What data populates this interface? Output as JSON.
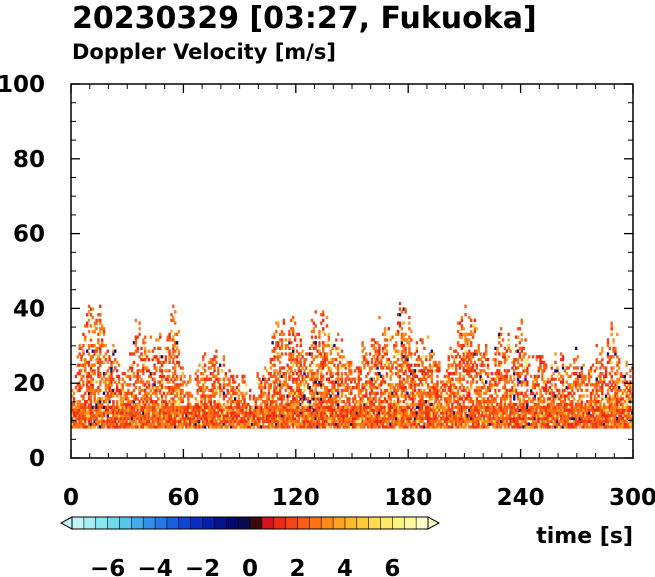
{
  "chart_data": {
    "type": "heatmap",
    "title": "20230329 [03:27, Fukuoka]",
    "subtitle": "Doppler Velocity [m/s]",
    "xlabel": "time [s]",
    "ylabel": "",
    "xlim": [
      0,
      300
    ],
    "ylim": [
      0,
      100
    ],
    "x_ticks": [
      "0",
      "60",
      "120",
      "180",
      "240",
      "300"
    ],
    "y_ticks": [
      "0",
      "20",
      "40",
      "60",
      "80",
      "100"
    ],
    "grid": false,
    "colorbar": {
      "label_ticks": [
        "−6",
        "−4",
        "−2",
        "0",
        "2",
        "4",
        "6"
      ],
      "range": [
        -7.5,
        7.5
      ],
      "extend": "both",
      "colors": [
        "#bff5f8",
        "#a3eef4",
        "#88e6ef",
        "#6ed9ec",
        "#58c5ec",
        "#45acec",
        "#3491ea",
        "#2677e6",
        "#1a5ee0",
        "#1045d4",
        "#0930c0",
        "#061fa8",
        "#04128e",
        "#050a6e",
        "#0a0a4e",
        "#3a0a0a",
        "#d8121a",
        "#ef2a14",
        "#f74314",
        "#fb5c14",
        "#fd7414",
        "#fe8c16",
        "#ffa31c",
        "#ffb828",
        "#ffcb3a",
        "#ffdc50",
        "#ffe96a",
        "#fff386",
        "#fff9a6",
        "#fffcc8"
      ]
    },
    "dominant_velocity_range": [
      0,
      4
    ],
    "columns": [
      {
        "t": 0,
        "top": 18
      },
      {
        "t": 5,
        "top": 29
      },
      {
        "t": 10,
        "top": 40
      },
      {
        "t": 15,
        "top": 42
      },
      {
        "t": 20,
        "top": 30
      },
      {
        "t": 25,
        "top": 27
      },
      {
        "t": 30,
        "top": 25
      },
      {
        "t": 35,
        "top": 36
      },
      {
        "t": 40,
        "top": 31
      },
      {
        "t": 45,
        "top": 33
      },
      {
        "t": 50,
        "top": 28
      },
      {
        "t": 55,
        "top": 41
      },
      {
        "t": 60,
        "top": 23
      },
      {
        "t": 65,
        "top": 21
      },
      {
        "t": 70,
        "top": 25
      },
      {
        "t": 75,
        "top": 30
      },
      {
        "t": 80,
        "top": 27
      },
      {
        "t": 85,
        "top": 20
      },
      {
        "t": 90,
        "top": 23
      },
      {
        "t": 95,
        "top": 15
      },
      {
        "t": 100,
        "top": 22
      },
      {
        "t": 105,
        "top": 25
      },
      {
        "t": 110,
        "top": 38
      },
      {
        "t": 115,
        "top": 33
      },
      {
        "t": 120,
        "top": 39
      },
      {
        "t": 125,
        "top": 29
      },
      {
        "t": 130,
        "top": 38
      },
      {
        "t": 135,
        "top": 40
      },
      {
        "t": 140,
        "top": 32
      },
      {
        "t": 145,
        "top": 30
      },
      {
        "t": 150,
        "top": 26
      },
      {
        "t": 155,
        "top": 28
      },
      {
        "t": 160,
        "top": 30
      },
      {
        "t": 165,
        "top": 35
      },
      {
        "t": 170,
        "top": 33
      },
      {
        "t": 175,
        "top": 42
      },
      {
        "t": 180,
        "top": 36
      },
      {
        "t": 185,
        "top": 29
      },
      {
        "t": 190,
        "top": 30
      },
      {
        "t": 195,
        "top": 26
      },
      {
        "t": 200,
        "top": 25
      },
      {
        "t": 205,
        "top": 32
      },
      {
        "t": 210,
        "top": 38
      },
      {
        "t": 215,
        "top": 36
      },
      {
        "t": 220,
        "top": 29
      },
      {
        "t": 225,
        "top": 27
      },
      {
        "t": 230,
        "top": 34
      },
      {
        "t": 235,
        "top": 31
      },
      {
        "t": 240,
        "top": 35
      },
      {
        "t": 245,
        "top": 28
      },
      {
        "t": 250,
        "top": 30
      },
      {
        "t": 255,
        "top": 26
      },
      {
        "t": 260,
        "top": 28
      },
      {
        "t": 265,
        "top": 24
      },
      {
        "t": 270,
        "top": 27
      },
      {
        "t": 275,
        "top": 22
      },
      {
        "t": 280,
        "top": 30
      },
      {
        "t": 285,
        "top": 28
      },
      {
        "t": 290,
        "top": 37
      },
      {
        "t": 295,
        "top": 25
      }
    ],
    "data_floor": 8,
    "data_ceiling_bulk": 14
  }
}
